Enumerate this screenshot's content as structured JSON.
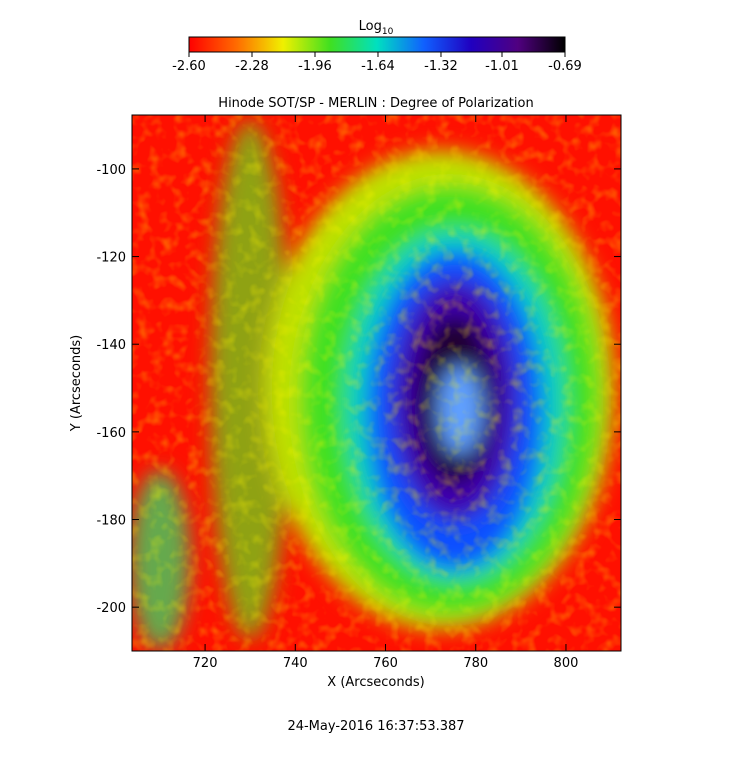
{
  "chart_data": {
    "type": "heatmap",
    "title": "Hinode SOT/SP - MERLIN : Degree of Polarization",
    "x_label": "X (Arcseconds)",
    "y_label": "Y (Arcseconds)",
    "xlim": [
      703.8,
      812.2
    ],
    "xticks": [
      720,
      740,
      760,
      780,
      800
    ],
    "ylim": [
      -210,
      -87.7
    ],
    "yticks": [
      -100,
      -120,
      -140,
      -160,
      -180,
      -200
    ],
    "colorbar_title": {
      "text": "Log",
      "subscript": "10"
    },
    "colorbar_lim": [
      -2.6,
      -0.69
    ],
    "colorbar_ticks": [
      {
        "value": -2.6,
        "label": "-2.60"
      },
      {
        "value": -2.28,
        "label": "-2.28"
      },
      {
        "value": -1.96,
        "label": "-1.96"
      },
      {
        "value": -1.64,
        "label": "-1.64"
      },
      {
        "value": -1.32,
        "label": "-1.32"
      },
      {
        "value": -1.01,
        "label": "-1.01"
      },
      {
        "value": -0.69,
        "label": "-0.69"
      }
    ],
    "colormap": [
      "#ff0000",
      "#ff6a00",
      "#f0f000",
      "#40e020",
      "#00e0c0",
      "#1060ff",
      "#2000c0",
      "#500080",
      "#000000"
    ],
    "footer": "24-May-2016 16:37:53.387"
  }
}
